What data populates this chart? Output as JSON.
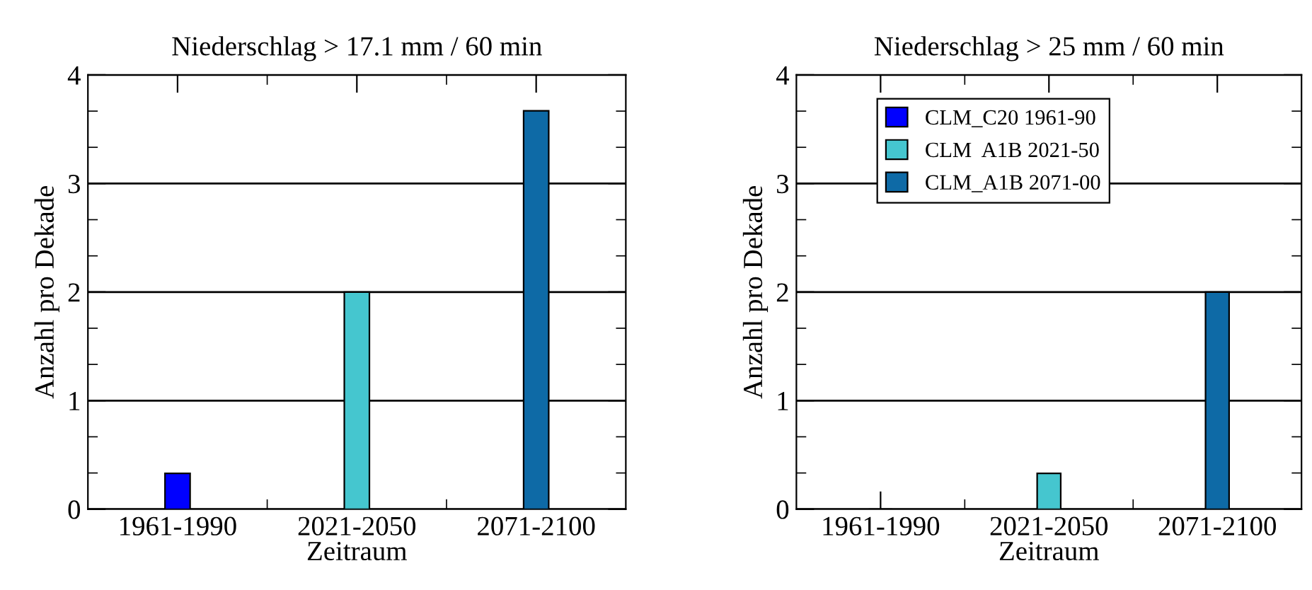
{
  "chart_data": [
    {
      "type": "bar",
      "title": "Niederschlag > 17.1 mm / 60 min",
      "xlabel": "Zeitraum",
      "ylabel": "Anzahl pro Dekade",
      "categories": [
        "1961-1990",
        "2021-2050",
        "2071-2100"
      ],
      "series": [
        {
          "color": "#0000ff",
          "values": [
            0.33,
            null,
            null
          ]
        },
        {
          "color": "#45c6cf",
          "values": [
            null,
            2.0,
            null
          ]
        },
        {
          "color": "#0e6aa6",
          "values": [
            null,
            null,
            3.67
          ]
        }
      ],
      "ylim": [
        0,
        4
      ],
      "yticks": [
        0,
        1,
        2,
        3,
        4
      ],
      "grid": "y",
      "legend": false
    },
    {
      "type": "bar",
      "title": "Niederschlag > 25 mm / 60 min",
      "xlabel": "Zeitraum",
      "ylabel": "Anzahl pro Dekade",
      "categories": [
        "1961-1990",
        "2021-2050",
        "2071-2100"
      ],
      "series": [
        {
          "name": "CLM_C20 1961-90",
          "color": "#0000ff",
          "values": [
            0,
            null,
            null
          ]
        },
        {
          "name": "CLM  A1B 2021-50",
          "color": "#45c6cf",
          "values": [
            null,
            0.33,
            null
          ]
        },
        {
          "name": "CLM_A1B 2071-00",
          "color": "#0e6aa6",
          "values": [
            null,
            null,
            2.0
          ]
        }
      ],
      "ylim": [
        0,
        4
      ],
      "yticks": [
        0,
        1,
        2,
        3,
        4
      ],
      "grid": "y",
      "legend": "top"
    }
  ]
}
